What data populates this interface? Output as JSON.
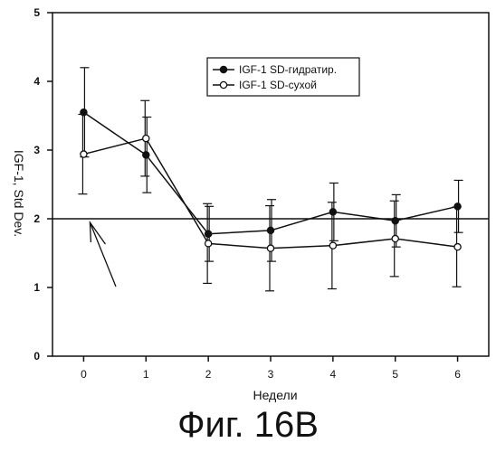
{
  "chart_data": {
    "type": "line",
    "xlabel": "Недели",
    "ylabel": "IGF-1, Std Dev.",
    "x": [
      0,
      1,
      2,
      3,
      4,
      5,
      6
    ],
    "xlim": [
      -0.5,
      6.5
    ],
    "ylim": [
      0,
      5
    ],
    "x_ticks": [
      "0",
      "1",
      "2",
      "3",
      "4",
      "5",
      "6"
    ],
    "y_ticks": [
      "0",
      "1",
      "2",
      "3",
      "4",
      "5"
    ],
    "reference_line_y": 2,
    "legend_position": "top-right",
    "series": [
      {
        "name": "IGF-1 SD-гидратир.",
        "marker": "filled-circle",
        "values": [
          3.55,
          2.93,
          1.78,
          1.83,
          2.1,
          1.97,
          2.18
        ],
        "error": [
          0.65,
          0.55,
          0.4,
          0.45,
          0.42,
          0.38,
          0.38
        ]
      },
      {
        "name": "IGF-1 SD-сухой",
        "marker": "open-circle",
        "values": [
          2.94,
          3.17,
          1.64,
          1.57,
          1.61,
          1.71,
          1.59
        ],
        "error": [
          0.58,
          0.55,
          0.58,
          0.62,
          0.63,
          0.55,
          0.58
        ]
      }
    ],
    "annotations": [
      "arrow pointing to x=0 on the reference line"
    ]
  },
  "caption": "Фиг. 16B"
}
